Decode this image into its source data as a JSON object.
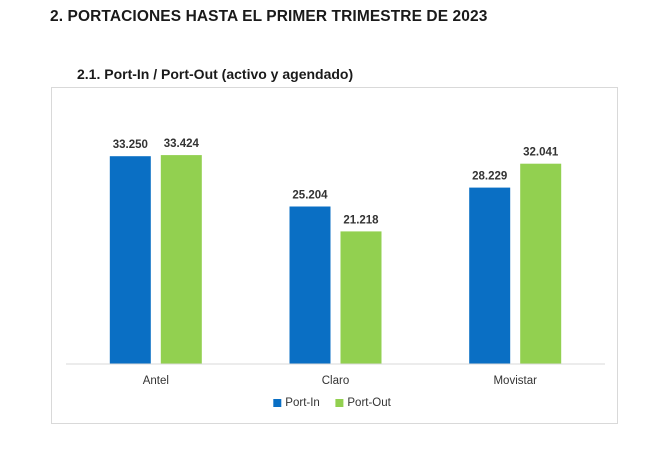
{
  "document": {
    "section_heading": "2.  PORTACIONES HASTA EL PRIMER TRIMESTRE DE 2023",
    "subsection_heading": "2.1.  Port-In / Port-Out (activo y agendado)"
  },
  "colors": {
    "port_in": "#0a6fc4",
    "port_out": "#92d050",
    "axis": "#d9d9d9"
  },
  "chart_data": {
    "type": "bar",
    "title": "",
    "xlabel": "",
    "ylabel": "",
    "grid": false,
    "ylim": [
      0,
      36000
    ],
    "legend_position": "bottom-center",
    "categories": [
      "Antel",
      "Claro",
      "Movistar"
    ],
    "series": [
      {
        "name": "Port-In",
        "values": [
          33250,
          25204,
          28229
        ],
        "labels": [
          "33.250",
          "25.204",
          "28.229"
        ]
      },
      {
        "name": "Port-Out",
        "values": [
          33424,
          21218,
          32041
        ],
        "labels": [
          "33.424",
          "21.218",
          "32.041"
        ]
      }
    ]
  }
}
